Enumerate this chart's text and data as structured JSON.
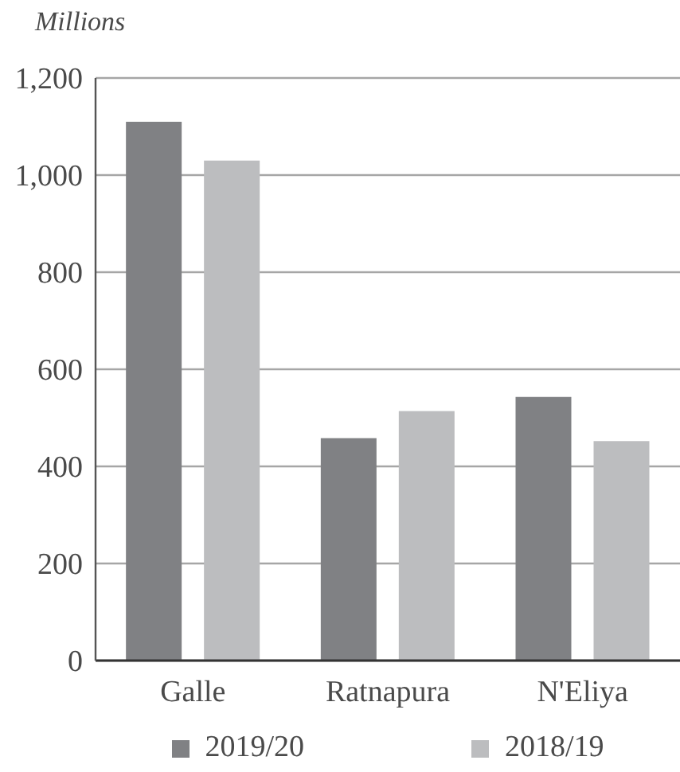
{
  "chart_data": {
    "type": "bar",
    "ylabel": "Millions",
    "categories": [
      "Galle",
      "Ratnapura",
      "N'Eliya"
    ],
    "series": [
      {
        "name": "2019/20",
        "color": "#808184",
        "values": [
          1110,
          458,
          543
        ]
      },
      {
        "name": "2018/19",
        "color": "#bcbdbf",
        "values": [
          1030,
          514,
          452
        ]
      }
    ],
    "ylim": [
      0,
      1200
    ],
    "yticks": [
      0,
      200,
      400,
      600,
      800,
      {
        "value": 1000,
        "label": "1,000"
      },
      {
        "value": 1200,
        "label": "1,200"
      }
    ],
    "grid": "y",
    "legend": "bottom"
  }
}
